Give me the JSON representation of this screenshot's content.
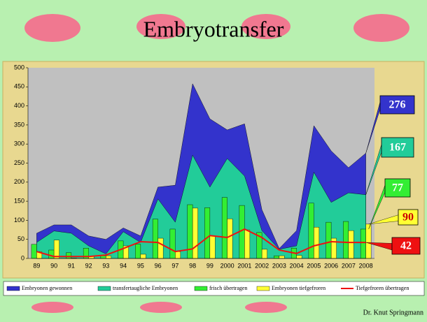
{
  "chart_data": {
    "type": "combo",
    "title": "Embryotransfer",
    "author": "Dr. Knut Springmann",
    "categories": [
      "89",
      "90",
      "91",
      "92",
      "93",
      "94",
      "95",
      "96",
      "97",
      "98",
      "99",
      "2000",
      "2001",
      "2002",
      "2003",
      "2004",
      "2005",
      "2006",
      "2007",
      "2008"
    ],
    "ylim": [
      0,
      500
    ],
    "yticks": [
      0,
      50,
      100,
      150,
      200,
      250,
      300,
      350,
      400,
      450,
      500
    ],
    "legend": "bottom",
    "callouts": true,
    "series": [
      {
        "name": "Embryonen gewonnen",
        "kind": "area",
        "color": "#3333cc",
        "values": [
          66,
          88,
          88,
          59,
          50,
          80,
          59,
          187,
          192,
          458,
          366,
          337,
          353,
          128,
          26,
          73,
          348,
          282,
          238,
          276
        ]
      },
      {
        "name": "transfertaugliche Embryonen",
        "kind": "area",
        "color": "#22cc99",
        "values": [
          42,
          72,
          66,
          33,
          12,
          70,
          42,
          156,
          95,
          271,
          187,
          262,
          216,
          73,
          24,
          33,
          226,
          147,
          172,
          167
        ]
      },
      {
        "name": "frisch übertragen",
        "kind": "bar",
        "color": "#33ee33",
        "values": [
          37,
          22,
          15,
          27,
          7,
          46,
          37,
          103,
          77,
          141,
          133,
          160,
          139,
          68,
          7,
          27,
          145,
          95,
          97,
          77
        ]
      },
      {
        "name": "Embryonen tiefgefroren",
        "kind": "bar",
        "color": "#ffff33",
        "values": [
          18,
          48,
          1,
          5,
          7,
          33,
          11,
          53,
          18,
          132,
          59,
          104,
          75,
          24,
          7,
          8,
          82,
          53,
          73,
          90
        ]
      },
      {
        "name": "Tiefgefroren übertragen",
        "kind": "line",
        "color": "#ee1111",
        "values": [
          18,
          5,
          5,
          5,
          9,
          26,
          44,
          42,
          18,
          25,
          60,
          55,
          77,
          55,
          22,
          13,
          33,
          44,
          42,
          42
        ]
      }
    ]
  }
}
